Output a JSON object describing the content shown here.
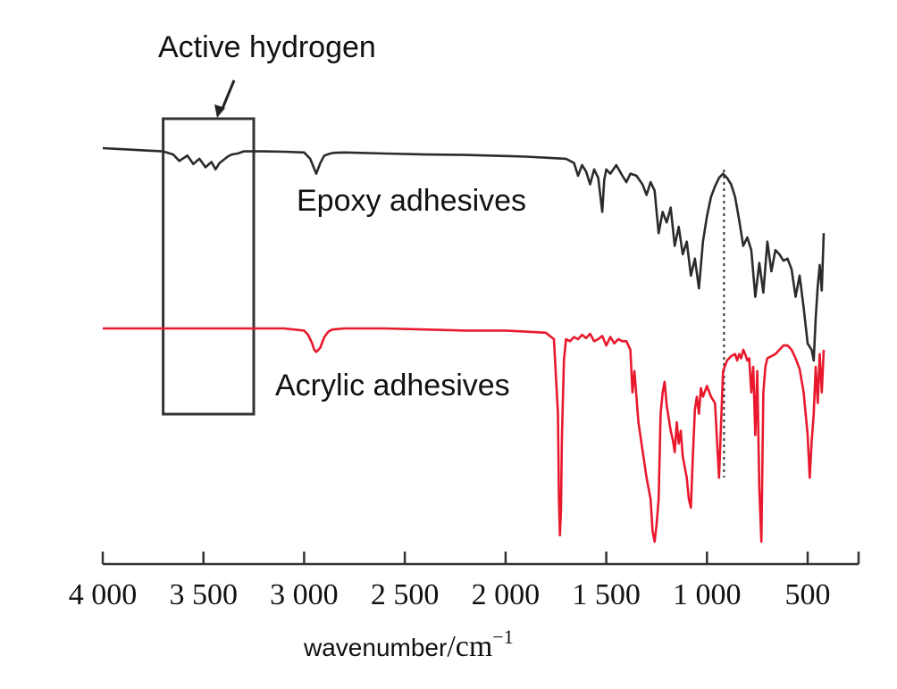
{
  "chart_data": {
    "type": "line",
    "title": "",
    "xlabel": "wavenumber",
    "xlabel_unit": "/cm",
    "xlabel_unit_exponent": "−1",
    "xlim": [
      4000,
      400
    ],
    "x_reversed": true,
    "x_ticks": [
      4000,
      3500,
      3000,
      2500,
      2000,
      1500,
      1000,
      500
    ],
    "x_tick_labels": [
      "4 000",
      "3 500",
      "3 000",
      "2 500",
      "2 000",
      "1 500",
      "1 000",
      "500"
    ],
    "y_axis_visible": false,
    "grid": false,
    "legend": "none",
    "annotations": {
      "active_hydrogen": "Active hydrogen",
      "epoxy_label": "Epoxy adhesives",
      "acrylic_label": "Acrylic adhesives",
      "active_hydrogen_box_x": [
        3700,
        3250
      ],
      "reference_line_x": 915
    },
    "series": [
      {
        "label": "Epoxy adhesives",
        "color": "#2b2b2b",
        "x": [
          4000,
          3900,
          3800,
          3700,
          3650,
          3620,
          3580,
          3550,
          3520,
          3490,
          3460,
          3440,
          3420,
          3400,
          3380,
          3360,
          3330,
          3300,
          3250,
          3200,
          3100,
          3000,
          2970,
          2940,
          2920,
          2900,
          2870,
          2850,
          2800,
          2600,
          2400,
          2200,
          2000,
          1900,
          1800,
          1700,
          1660,
          1640,
          1620,
          1600,
          1580,
          1560,
          1540,
          1520,
          1510,
          1500,
          1480,
          1450,
          1420,
          1400,
          1380,
          1350,
          1320,
          1300,
          1280,
          1260,
          1240,
          1220,
          1200,
          1180,
          1160,
          1140,
          1120,
          1100,
          1080,
          1060,
          1040,
          1020,
          1000,
          980,
          960,
          940,
          920,
          900,
          880,
          860,
          840,
          820,
          800,
          780,
          760,
          740,
          720,
          700,
          680,
          660,
          640,
          620,
          600,
          580,
          560,
          540,
          520,
          500,
          480,
          470,
          460,
          450,
          440,
          430,
          420
        ],
        "y": [
          1.0,
          0.995,
          0.99,
          0.985,
          0.97,
          0.94,
          0.965,
          0.925,
          0.95,
          0.91,
          0.935,
          0.9,
          0.93,
          0.945,
          0.96,
          0.97,
          0.975,
          0.985,
          0.985,
          0.985,
          0.983,
          0.98,
          0.95,
          0.88,
          0.93,
          0.965,
          0.975,
          0.978,
          0.98,
          0.975,
          0.97,
          0.968,
          0.963,
          0.96,
          0.955,
          0.95,
          0.93,
          0.87,
          0.92,
          0.89,
          0.83,
          0.9,
          0.86,
          0.7,
          0.85,
          0.9,
          0.88,
          0.92,
          0.87,
          0.84,
          0.88,
          0.87,
          0.83,
          0.78,
          0.84,
          0.8,
          0.6,
          0.7,
          0.65,
          0.72,
          0.54,
          0.63,
          0.5,
          0.56,
          0.4,
          0.48,
          0.34,
          0.56,
          0.68,
          0.77,
          0.82,
          0.86,
          0.88,
          0.86,
          0.83,
          0.77,
          0.66,
          0.54,
          0.58,
          0.52,
          0.3,
          0.46,
          0.32,
          0.56,
          0.42,
          0.52,
          0.5,
          0.47,
          0.48,
          0.43,
          0.3,
          0.4,
          0.25,
          0.08,
          0.05,
          0.0,
          0.2,
          0.35,
          0.45,
          0.33,
          0.6
        ]
      },
      {
        "label": "Acrylic adhesives",
        "color": "#e8192c",
        "x": [
          4000,
          3900,
          3800,
          3700,
          3600,
          3500,
          3400,
          3300,
          3200,
          3100,
          3000,
          2980,
          2960,
          2950,
          2940,
          2920,
          2900,
          2880,
          2860,
          2800,
          2600,
          2400,
          2200,
          2000,
          1900,
          1800,
          1760,
          1740,
          1735,
          1730,
          1725,
          1720,
          1710,
          1700,
          1680,
          1660,
          1640,
          1620,
          1600,
          1580,
          1560,
          1540,
          1520,
          1500,
          1480,
          1460,
          1440,
          1420,
          1400,
          1380,
          1370,
          1360,
          1340,
          1320,
          1300,
          1280,
          1270,
          1260,
          1250,
          1240,
          1230,
          1220,
          1210,
          1200,
          1180,
          1170,
          1160,
          1150,
          1140,
          1130,
          1120,
          1100,
          1090,
          1080,
          1070,
          1060,
          1050,
          1040,
          1030,
          1020,
          1000,
          980,
          960,
          940,
          920,
          900,
          880,
          860,
          850,
          840,
          830,
          820,
          810,
          800,
          790,
          780,
          770,
          760,
          750,
          740,
          730,
          720,
          710,
          700,
          680,
          660,
          640,
          620,
          600,
          580,
          560,
          540,
          520,
          500,
          490,
          480,
          470,
          460,
          450,
          440,
          430,
          420
        ],
        "y": [
          1.0,
          1.0,
          1.0,
          1.0,
          1.0,
          1.0,
          1.0,
          1.0,
          1.0,
          1.0,
          0.99,
          0.97,
          0.93,
          0.9,
          0.89,
          0.91,
          0.96,
          0.985,
          0.995,
          1.0,
          1.0,
          0.995,
          0.99,
          0.99,
          0.985,
          0.98,
          0.95,
          0.6,
          0.2,
          0.03,
          0.15,
          0.5,
          0.85,
          0.95,
          0.94,
          0.96,
          0.95,
          0.97,
          0.955,
          0.975,
          0.94,
          0.95,
          0.965,
          0.92,
          0.96,
          0.93,
          0.95,
          0.94,
          0.94,
          0.9,
          0.7,
          0.8,
          0.56,
          0.43,
          0.3,
          0.2,
          0.05,
          0.0,
          0.08,
          0.2,
          0.6,
          0.7,
          0.75,
          0.64,
          0.52,
          0.48,
          0.42,
          0.56,
          0.46,
          0.52,
          0.4,
          0.3,
          0.2,
          0.16,
          0.4,
          0.62,
          0.68,
          0.6,
          0.72,
          0.68,
          0.73,
          0.68,
          0.65,
          0.3,
          0.8,
          0.85,
          0.87,
          0.88,
          0.85,
          0.88,
          0.86,
          0.9,
          0.88,
          0.85,
          0.86,
          0.7,
          0.82,
          0.5,
          0.8,
          0.25,
          0.0,
          0.7,
          0.82,
          0.86,
          0.87,
          0.88,
          0.9,
          0.92,
          0.92,
          0.9,
          0.86,
          0.81,
          0.7,
          0.5,
          0.3,
          0.47,
          0.6,
          0.82,
          0.65,
          0.88,
          0.7,
          0.9
        ]
      }
    ]
  }
}
